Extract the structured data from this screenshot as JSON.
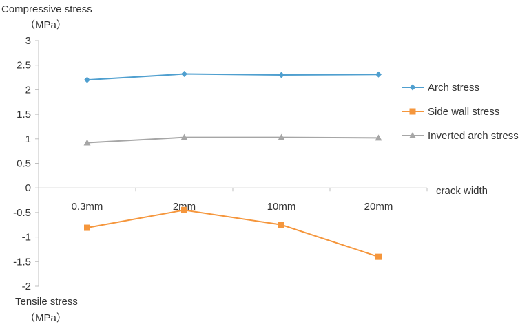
{
  "chart_data": {
    "type": "line",
    "categories": [
      "0.3mm",
      "2mm",
      "10mm",
      "20mm"
    ],
    "series": [
      {
        "name": "Arch stress",
        "values": [
          2.2,
          2.32,
          2.3,
          2.31
        ],
        "color": "#4F9FCF",
        "marker": "diamond"
      },
      {
        "name": "Side wall stress",
        "values": [
          -0.81,
          -0.45,
          -0.75,
          -1.4
        ],
        "color": "#F5963C",
        "marker": "square"
      },
      {
        "name": "Inverted arch stress",
        "values": [
          0.92,
          1.03,
          1.03,
          1.02
        ],
        "color": "#A6A6A6",
        "marker": "triangle"
      }
    ],
    "ylim": [
      -2,
      3
    ],
    "yticks": [
      "3",
      "2.5",
      "2",
      "1.5",
      "1",
      "0.5",
      "0",
      "-0.5",
      "-1",
      "-1.5",
      "-2"
    ],
    "ylabel_top_line1": "Compressive stress",
    "ylabel_top_line2": "（MPa）",
    "ylabel_bottom_line1": "Tensile stress",
    "ylabel_bottom_line2": "（MPa）",
    "xlabel": "crack width",
    "grid": false,
    "legend_position": "right"
  }
}
